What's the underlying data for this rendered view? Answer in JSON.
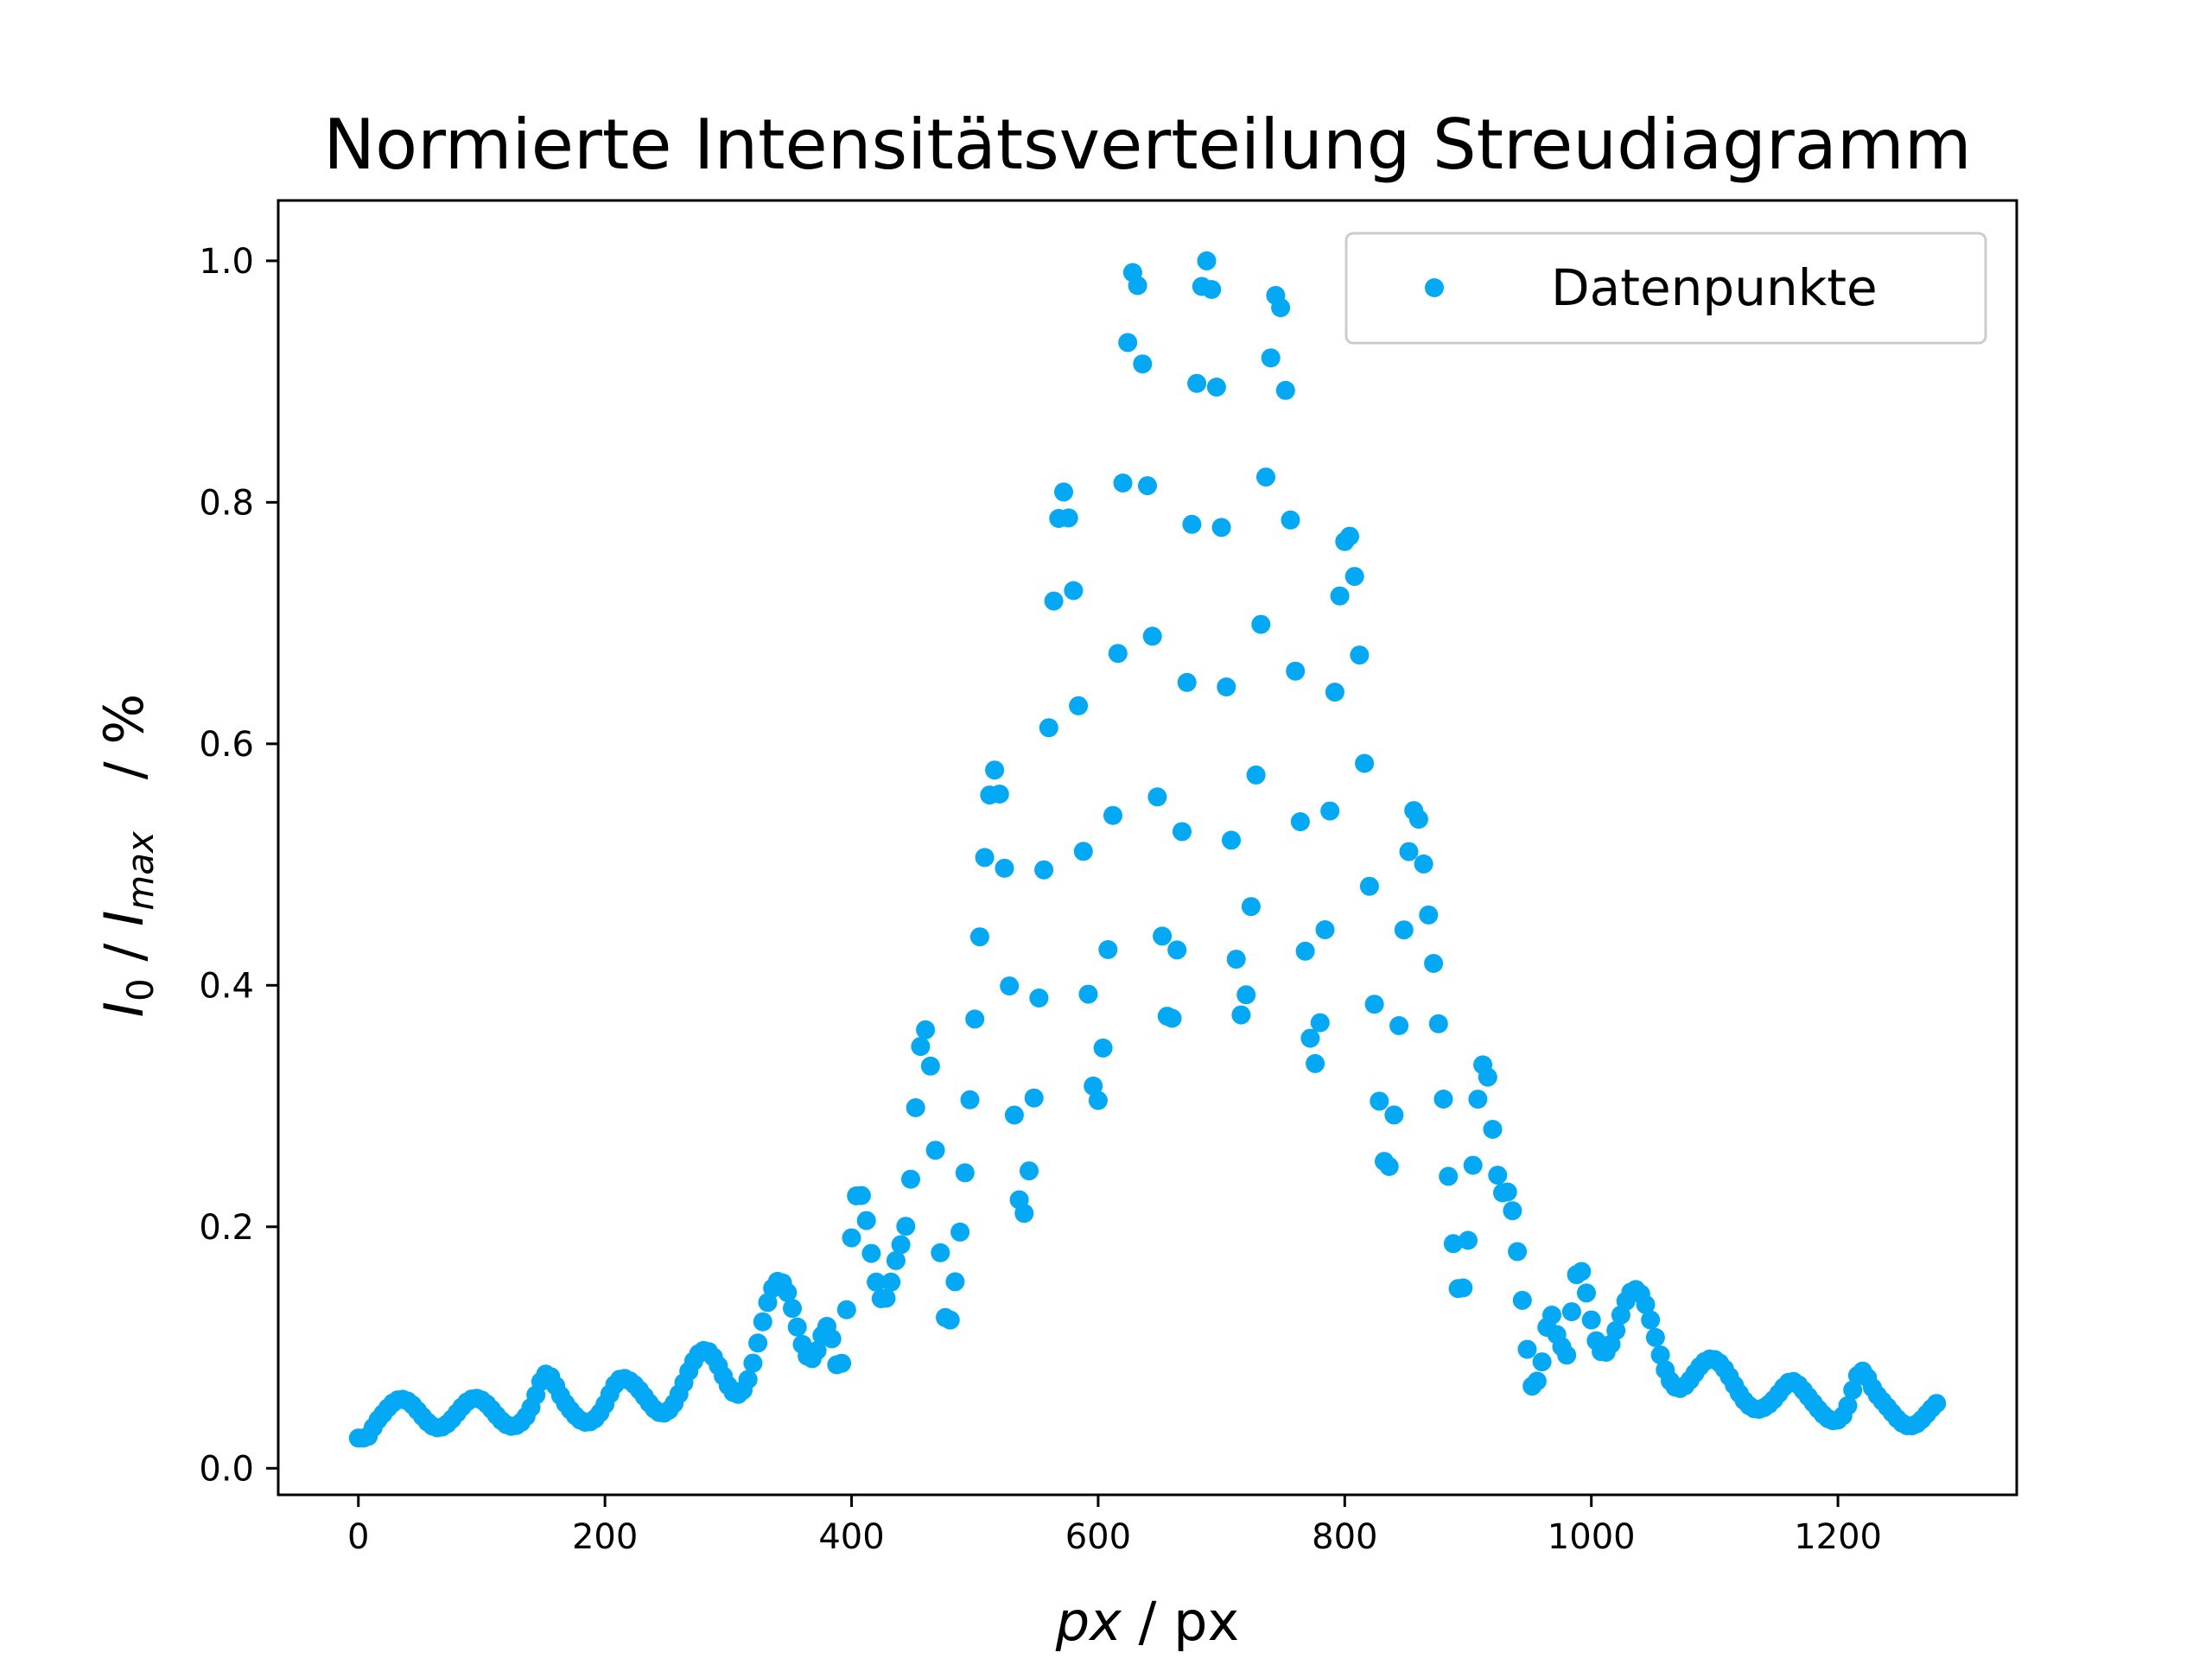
{
  "chart_data": {
    "type": "scatter",
    "title": "Normierte Intensitätsverteilung Streudiagramm",
    "xlabel": {
      "italic": "px",
      "rest": " / px"
    },
    "ylabel": {
      "i0": "I",
      "i0_sub": "0",
      "sep": " / ",
      "imax": "I",
      "imax_sub": "max",
      "unit": "/ %"
    },
    "xlim": [
      -65,
      1345
    ],
    "ylim": [
      -0.022,
      1.05
    ],
    "x_ticks": [
      0,
      200,
      400,
      600,
      800,
      1000,
      1200
    ],
    "x_tick_labels": [
      "0",
      "200",
      "400",
      "600",
      "800",
      "1000",
      "1200"
    ],
    "y_ticks": [
      0.0,
      0.2,
      0.4,
      0.6,
      0.8,
      1.0
    ],
    "y_tick_labels": [
      "0.0",
      "0.2",
      "0.4",
      "0.6",
      "0.8",
      "1.0"
    ],
    "grid": false,
    "legend": {
      "position": "top-right"
    },
    "series": [
      {
        "name": "Datenpunkte",
        "color": "#03a9f4",
        "marker": "circle",
        "x_range": [
          0,
          1280
        ],
        "x_step": 4,
        "envelope_center": 688,
        "envelope_width": 150,
        "envelope_peak": 1.0,
        "fringe_period": 58,
        "fringe_contrast": 0.62,
        "background_level": 0.045,
        "peaks": [
          {
            "x": 152,
            "y": 0.078
          },
          {
            "x": 210,
            "y": 0.072
          },
          {
            "x": 392,
            "y": 0.087
          },
          {
            "x": 447,
            "y": 0.228
          },
          {
            "x": 506,
            "y": 0.475
          },
          {
            "x": 565,
            "y": 0.74
          },
          {
            "x": 626,
            "y": 0.97
          },
          {
            "x": 686,
            "y": 1.0
          },
          {
            "x": 745,
            "y": 0.975
          },
          {
            "x": 806,
            "y": 0.76
          },
          {
            "x": 866,
            "y": 0.48
          },
          {
            "x": 924,
            "y": 0.242
          },
          {
            "x": 978,
            "y": 0.095
          },
          {
            "x": 1162,
            "y": 0.072
          },
          {
            "x": 1218,
            "y": 0.08
          }
        ],
        "minima": [
          {
            "x": 475,
            "y": 0.135
          },
          {
            "x": 535,
            "y": 0.235
          },
          {
            "x": 595,
            "y": 0.33
          },
          {
            "x": 655,
            "y": 0.385
          },
          {
            "x": 716,
            "y": 0.375
          },
          {
            "x": 776,
            "y": 0.335
          },
          {
            "x": 836,
            "y": 0.25
          },
          {
            "x": 896,
            "y": 0.15
          },
          {
            "x": 955,
            "y": 0.072
          }
        ]
      }
    ]
  }
}
